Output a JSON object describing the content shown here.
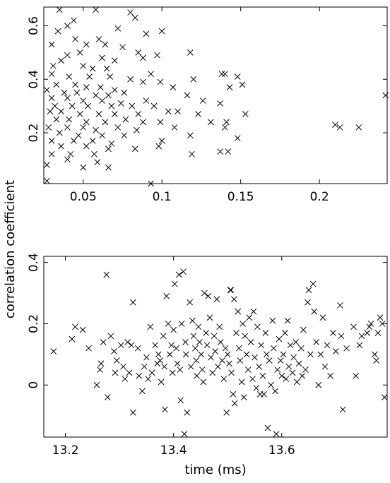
{
  "shared_ylabel": "correlation coefficient",
  "chart_data": [
    {
      "type": "scatter",
      "marker": "x",
      "xlabel": "",
      "ylabel": "correlation coefficient",
      "xlim": [
        0.025,
        0.243
      ],
      "ylim": [
        0.01,
        0.67
      ],
      "xticks": [
        0.05,
        0.1,
        0.15,
        0.2
      ],
      "xticklabels": [
        "0.05",
        "0.1",
        "0.15",
        "0.2"
      ],
      "yticks": [
        0.2,
        0.4,
        0.6
      ],
      "yticklabels": [
        "0.2",
        "0.4",
        "0.6"
      ],
      "grid": false,
      "points": [
        [
          0.035,
          0.66
        ],
        [
          0.058,
          0.66
        ],
        [
          0.08,
          0.65
        ],
        [
          0.083,
          0.63
        ],
        [
          0.044,
          0.62
        ],
        [
          0.04,
          0.6
        ],
        [
          0.034,
          0.58
        ],
        [
          0.072,
          0.59
        ],
        [
          0.1,
          0.58
        ],
        [
          0.09,
          0.57
        ],
        [
          0.045,
          0.55
        ],
        [
          0.06,
          0.55
        ],
        [
          0.064,
          0.53
        ],
        [
          0.052,
          0.53
        ],
        [
          0.03,
          0.53
        ],
        [
          0.075,
          0.52
        ],
        [
          0.085,
          0.5
        ],
        [
          0.118,
          0.5
        ],
        [
          0.048,
          0.5
        ],
        [
          0.04,
          0.49
        ],
        [
          0.062,
          0.48
        ],
        [
          0.07,
          0.47
        ],
        [
          0.088,
          0.48
        ],
        [
          0.097,
          0.49
        ],
        [
          0.036,
          0.47
        ],
        [
          0.031,
          0.45
        ],
        [
          0.05,
          0.45
        ],
        [
          0.056,
          0.44
        ],
        [
          0.065,
          0.44
        ],
        [
          0.093,
          0.42
        ],
        [
          0.138,
          0.42
        ],
        [
          0.14,
          0.42
        ],
        [
          0.03,
          0.42
        ],
        [
          0.041,
          0.41
        ],
        [
          0.054,
          0.41
        ],
        [
          0.067,
          0.41
        ],
        [
          0.08,
          0.4
        ],
        [
          0.12,
          0.4
        ],
        [
          0.148,
          0.41
        ],
        [
          0.088,
          0.39
        ],
        [
          0.099,
          0.39
        ],
        [
          0.033,
          0.38
        ],
        [
          0.045,
          0.38
        ],
        [
          0.052,
          0.37
        ],
        [
          0.061,
          0.37
        ],
        [
          0.07,
          0.36
        ],
        [
          0.107,
          0.37
        ],
        [
          0.151,
          0.38
        ],
        [
          0.143,
          0.37
        ],
        [
          0.027,
          0.36
        ],
        [
          0.038,
          0.35
        ],
        [
          0.046,
          0.35
        ],
        [
          0.058,
          0.34
        ],
        [
          0.066,
          0.34
        ],
        [
          0.076,
          0.35
        ],
        [
          0.03,
          0.33
        ],
        [
          0.04,
          0.33
        ],
        [
          0.05,
          0.32
        ],
        [
          0.062,
          0.32
        ],
        [
          0.074,
          0.31
        ],
        [
          0.09,
          0.32
        ],
        [
          0.116,
          0.34
        ],
        [
          0.126,
          0.32
        ],
        [
          0.137,
          0.31
        ],
        [
          0.242,
          0.34
        ],
        [
          0.032,
          0.3
        ],
        [
          0.043,
          0.3
        ],
        [
          0.053,
          0.3
        ],
        [
          0.068,
          0.3
        ],
        [
          0.081,
          0.3
        ],
        [
          0.095,
          0.3
        ],
        [
          0.029,
          0.28
        ],
        [
          0.036,
          0.28
        ],
        [
          0.048,
          0.27
        ],
        [
          0.06,
          0.27
        ],
        [
          0.07,
          0.27
        ],
        [
          0.085,
          0.27
        ],
        [
          0.104,
          0.28
        ],
        [
          0.11,
          0.28
        ],
        [
          0.123,
          0.27
        ],
        [
          0.153,
          0.27
        ],
        [
          0.033,
          0.25
        ],
        [
          0.041,
          0.25
        ],
        [
          0.052,
          0.24
        ],
        [
          0.064,
          0.24
        ],
        [
          0.077,
          0.25
        ],
        [
          0.088,
          0.24
        ],
        [
          0.099,
          0.24
        ],
        [
          0.131,
          0.24
        ],
        [
          0.141,
          0.24
        ],
        [
          0.028,
          0.22
        ],
        [
          0.04,
          0.22
        ],
        [
          0.05,
          0.22
        ],
        [
          0.058,
          0.21
        ],
        [
          0.072,
          0.22
        ],
        [
          0.084,
          0.21
        ],
        [
          0.108,
          0.22
        ],
        [
          0.14,
          0.22
        ],
        [
          0.21,
          0.23
        ],
        [
          0.213,
          0.22
        ],
        [
          0.225,
          0.22
        ],
        [
          0.035,
          0.2
        ],
        [
          0.047,
          0.19
        ],
        [
          0.062,
          0.19
        ],
        [
          0.076,
          0.19
        ],
        [
          0.118,
          0.19
        ],
        [
          0.148,
          0.18
        ],
        [
          0.03,
          0.17
        ],
        [
          0.044,
          0.17
        ],
        [
          0.056,
          0.17
        ],
        [
          0.068,
          0.16
        ],
        [
          0.1,
          0.17
        ],
        [
          0.036,
          0.15
        ],
        [
          0.052,
          0.15
        ],
        [
          0.066,
          0.14
        ],
        [
          0.083,
          0.14
        ],
        [
          0.098,
          0.15
        ],
        [
          0.119,
          0.12
        ],
        [
          0.137,
          0.13
        ],
        [
          0.142,
          0.13
        ],
        [
          0.03,
          0.12
        ],
        [
          0.042,
          0.12
        ],
        [
          0.057,
          0.12
        ],
        [
          0.04,
          0.1
        ],
        [
          0.059,
          0.09
        ],
        [
          0.066,
          0.07
        ],
        [
          0.027,
          0.08
        ],
        [
          0.05,
          0.07
        ],
        [
          0.027,
          0.02
        ],
        [
          0.093,
          0.01
        ]
      ]
    },
    {
      "type": "scatter",
      "marker": "x",
      "xlabel": "time (ms)",
      "ylabel": "correlation coefficient",
      "xlim": [
        13.16,
        13.795
      ],
      "ylim": [
        -0.17,
        0.42
      ],
      "xticks": [
        13.2,
        13.4,
        13.6
      ],
      "xticklabels": [
        "13.2",
        "13.4",
        "13.6"
      ],
      "yticks": [
        0,
        0.2,
        0.4
      ],
      "yticklabels": [
        "0",
        "0.2",
        "0.4"
      ],
      "grid": false,
      "points": [
        [
          13.178,
          0.11
        ],
        [
          13.212,
          0.15
        ],
        [
          13.218,
          0.19
        ],
        [
          13.232,
          0.18
        ],
        [
          13.243,
          0.12
        ],
        [
          13.258,
          0.0
        ],
        [
          13.264,
          0.05
        ],
        [
          13.266,
          0.07
        ],
        [
          13.27,
          0.14
        ],
        [
          13.276,
          0.36
        ],
        [
          13.278,
          -0.04
        ],
        [
          13.284,
          0.16
        ],
        [
          13.29,
          0.11
        ],
        [
          13.292,
          0.04
        ],
        [
          13.295,
          0.08
        ],
        [
          13.303,
          0.13
        ],
        [
          13.307,
          0.06
        ],
        [
          13.31,
          0.02
        ],
        [
          13.315,
          0.14
        ],
        [
          13.318,
          0.04
        ],
        [
          13.322,
          0.13
        ],
        [
          13.325,
          0.27
        ],
        [
          13.325,
          -0.09
        ],
        [
          13.334,
          0.12
        ],
        [
          13.336,
          0.03
        ],
        [
          13.342,
          -0.02
        ],
        [
          13.346,
          0.06
        ],
        [
          13.35,
          0.09
        ],
        [
          13.353,
          0.02
        ],
        [
          13.357,
          0.19
        ],
        [
          13.36,
          0.04
        ],
        [
          13.366,
          0.13
        ],
        [
          13.37,
          0.07
        ],
        [
          13.372,
          0.1
        ],
        [
          13.375,
          0.08
        ],
        [
          13.377,
          0.01
        ],
        [
          13.381,
          0.16
        ],
        [
          13.383,
          0.06
        ],
        [
          13.384,
          -0.08
        ],
        [
          13.387,
          0.29
        ],
        [
          13.39,
          0.2
        ],
        [
          13.393,
          0.1
        ],
        [
          13.396,
          0.13
        ],
        [
          13.398,
          0.04
        ],
        [
          13.4,
          0.18
        ],
        [
          13.402,
          0.33
        ],
        [
          13.405,
          0.12
        ],
        [
          13.407,
          0.07
        ],
        [
          13.41,
          0.36
        ],
        [
          13.412,
          0.05
        ],
        [
          13.413,
          -0.05
        ],
        [
          13.415,
          0.2
        ],
        [
          13.418,
          0.37
        ],
        [
          13.42,
          -0.16
        ],
        [
          13.422,
          0.14
        ],
        [
          13.423,
          0.1
        ],
        [
          13.425,
          -0.09
        ],
        [
          13.43,
          0.27
        ],
        [
          13.432,
          0.06
        ],
        [
          13.435,
          0.21
        ],
        [
          13.437,
          0.16
        ],
        [
          13.44,
          0.12
        ],
        [
          13.442,
          0.08
        ],
        [
          13.443,
          0.03
        ],
        [
          13.446,
          0.19
        ],
        [
          13.448,
          0.14
        ],
        [
          13.451,
          0.1
        ],
        [
          13.453,
          0.05
        ],
        [
          13.455,
          0.01
        ],
        [
          13.457,
          0.3
        ],
        [
          13.46,
          0.17
        ],
        [
          13.462,
          0.13
        ],
        [
          13.464,
          0.29
        ],
        [
          13.467,
          0.22
        ],
        [
          13.469,
          0.09
        ],
        [
          13.472,
          0.04
        ],
        [
          13.475,
          0.16
        ],
        [
          13.477,
          0.11
        ],
        [
          13.48,
          0.28
        ],
        [
          13.482,
          0.06
        ],
        [
          13.485,
          0.19
        ],
        [
          13.487,
          0.14
        ],
        [
          13.49,
          0.08
        ],
        [
          13.493,
          0.02
        ],
        [
          13.496,
          0.12
        ],
        [
          13.498,
          -0.09
        ],
        [
          13.5,
          0.1
        ],
        [
          13.503,
          0.07
        ],
        [
          13.505,
          0.31
        ],
        [
          13.506,
          0.31
        ],
        [
          13.507,
          0.04
        ],
        [
          13.51,
          -0.03
        ],
        [
          13.512,
          0.28
        ],
        [
          13.513,
          -0.06
        ],
        [
          13.516,
          0.17
        ],
        [
          13.519,
          0.24
        ],
        [
          13.521,
          0.12
        ],
        [
          13.523,
          0.08
        ],
        [
          13.526,
          0.01
        ],
        [
          13.528,
          0.2
        ],
        [
          13.53,
          -0.04
        ],
        [
          13.532,
          0.16
        ],
        [
          13.535,
          0.1
        ],
        [
          13.538,
          0.05
        ],
        [
          13.54,
          0.22
        ],
        [
          13.543,
          0.14
        ],
        [
          13.546,
          0.02
        ],
        [
          13.548,
          0.24
        ],
        [
          13.55,
          0.09
        ],
        [
          13.553,
          -0.01
        ],
        [
          13.555,
          0.19
        ],
        [
          13.558,
          0.06
        ],
        [
          13.56,
          -0.03
        ],
        [
          13.562,
          0.13
        ],
        [
          13.565,
          0.03
        ],
        [
          13.567,
          -0.03
        ],
        [
          13.57,
          0.17
        ],
        [
          13.572,
          0.1
        ],
        [
          13.574,
          -0.14
        ],
        [
          13.577,
          0.08
        ],
        [
          13.58,
          0.0
        ],
        [
          13.583,
          0.21
        ],
        [
          13.585,
          0.12
        ],
        [
          13.588,
          -0.02
        ],
        [
          13.59,
          -0.16
        ],
        [
          13.592,
          0.05
        ],
        [
          13.595,
          0.15
        ],
        [
          13.598,
          0.08
        ],
        [
          13.6,
          0.03
        ],
        [
          13.603,
          0.1
        ],
        [
          13.606,
          0.17
        ],
        [
          13.608,
          0.02
        ],
        [
          13.611,
          0.21
        ],
        [
          13.613,
          0.06
        ],
        [
          13.616,
          0.13
        ],
        [
          13.62,
          0.04
        ],
        [
          13.622,
          0.09
        ],
        [
          13.626,
          0.14
        ],
        [
          13.628,
          0.01
        ],
        [
          13.632,
          0.07
        ],
        [
          13.636,
          0.12
        ],
        [
          13.638,
          0.03
        ],
        [
          13.64,
          0.18
        ],
        [
          13.644,
          0.05
        ],
        [
          13.648,
          0.27
        ],
        [
          13.65,
          0.31
        ],
        [
          13.653,
          0.1
        ],
        [
          13.658,
          0.33
        ],
        [
          13.66,
          0.24
        ],
        [
          13.664,
          0.14
        ],
        [
          13.668,
          0.0
        ],
        [
          13.672,
          0.1
        ],
        [
          13.676,
          0.22
        ],
        [
          13.68,
          0.06
        ],
        [
          13.684,
          0.13
        ],
        [
          13.69,
          0.03
        ],
        [
          13.695,
          0.17
        ],
        [
          13.7,
          0.11
        ],
        [
          13.708,
          0.26
        ],
        [
          13.71,
          0.16
        ],
        [
          13.713,
          -0.08
        ],
        [
          13.72,
          0.12
        ],
        [
          13.733,
          0.19
        ],
        [
          13.737,
          0.03
        ],
        [
          13.744,
          0.13
        ],
        [
          13.748,
          0.16
        ],
        [
          13.758,
          0.17
        ],
        [
          13.762,
          0.19
        ],
        [
          13.765,
          0.2
        ],
        [
          13.772,
          0.1
        ],
        [
          13.775,
          0.08
        ],
        [
          13.778,
          0.17
        ],
        [
          13.782,
          0.22
        ],
        [
          13.786,
          0.2
        ],
        [
          13.79,
          -0.04
        ]
      ]
    }
  ]
}
